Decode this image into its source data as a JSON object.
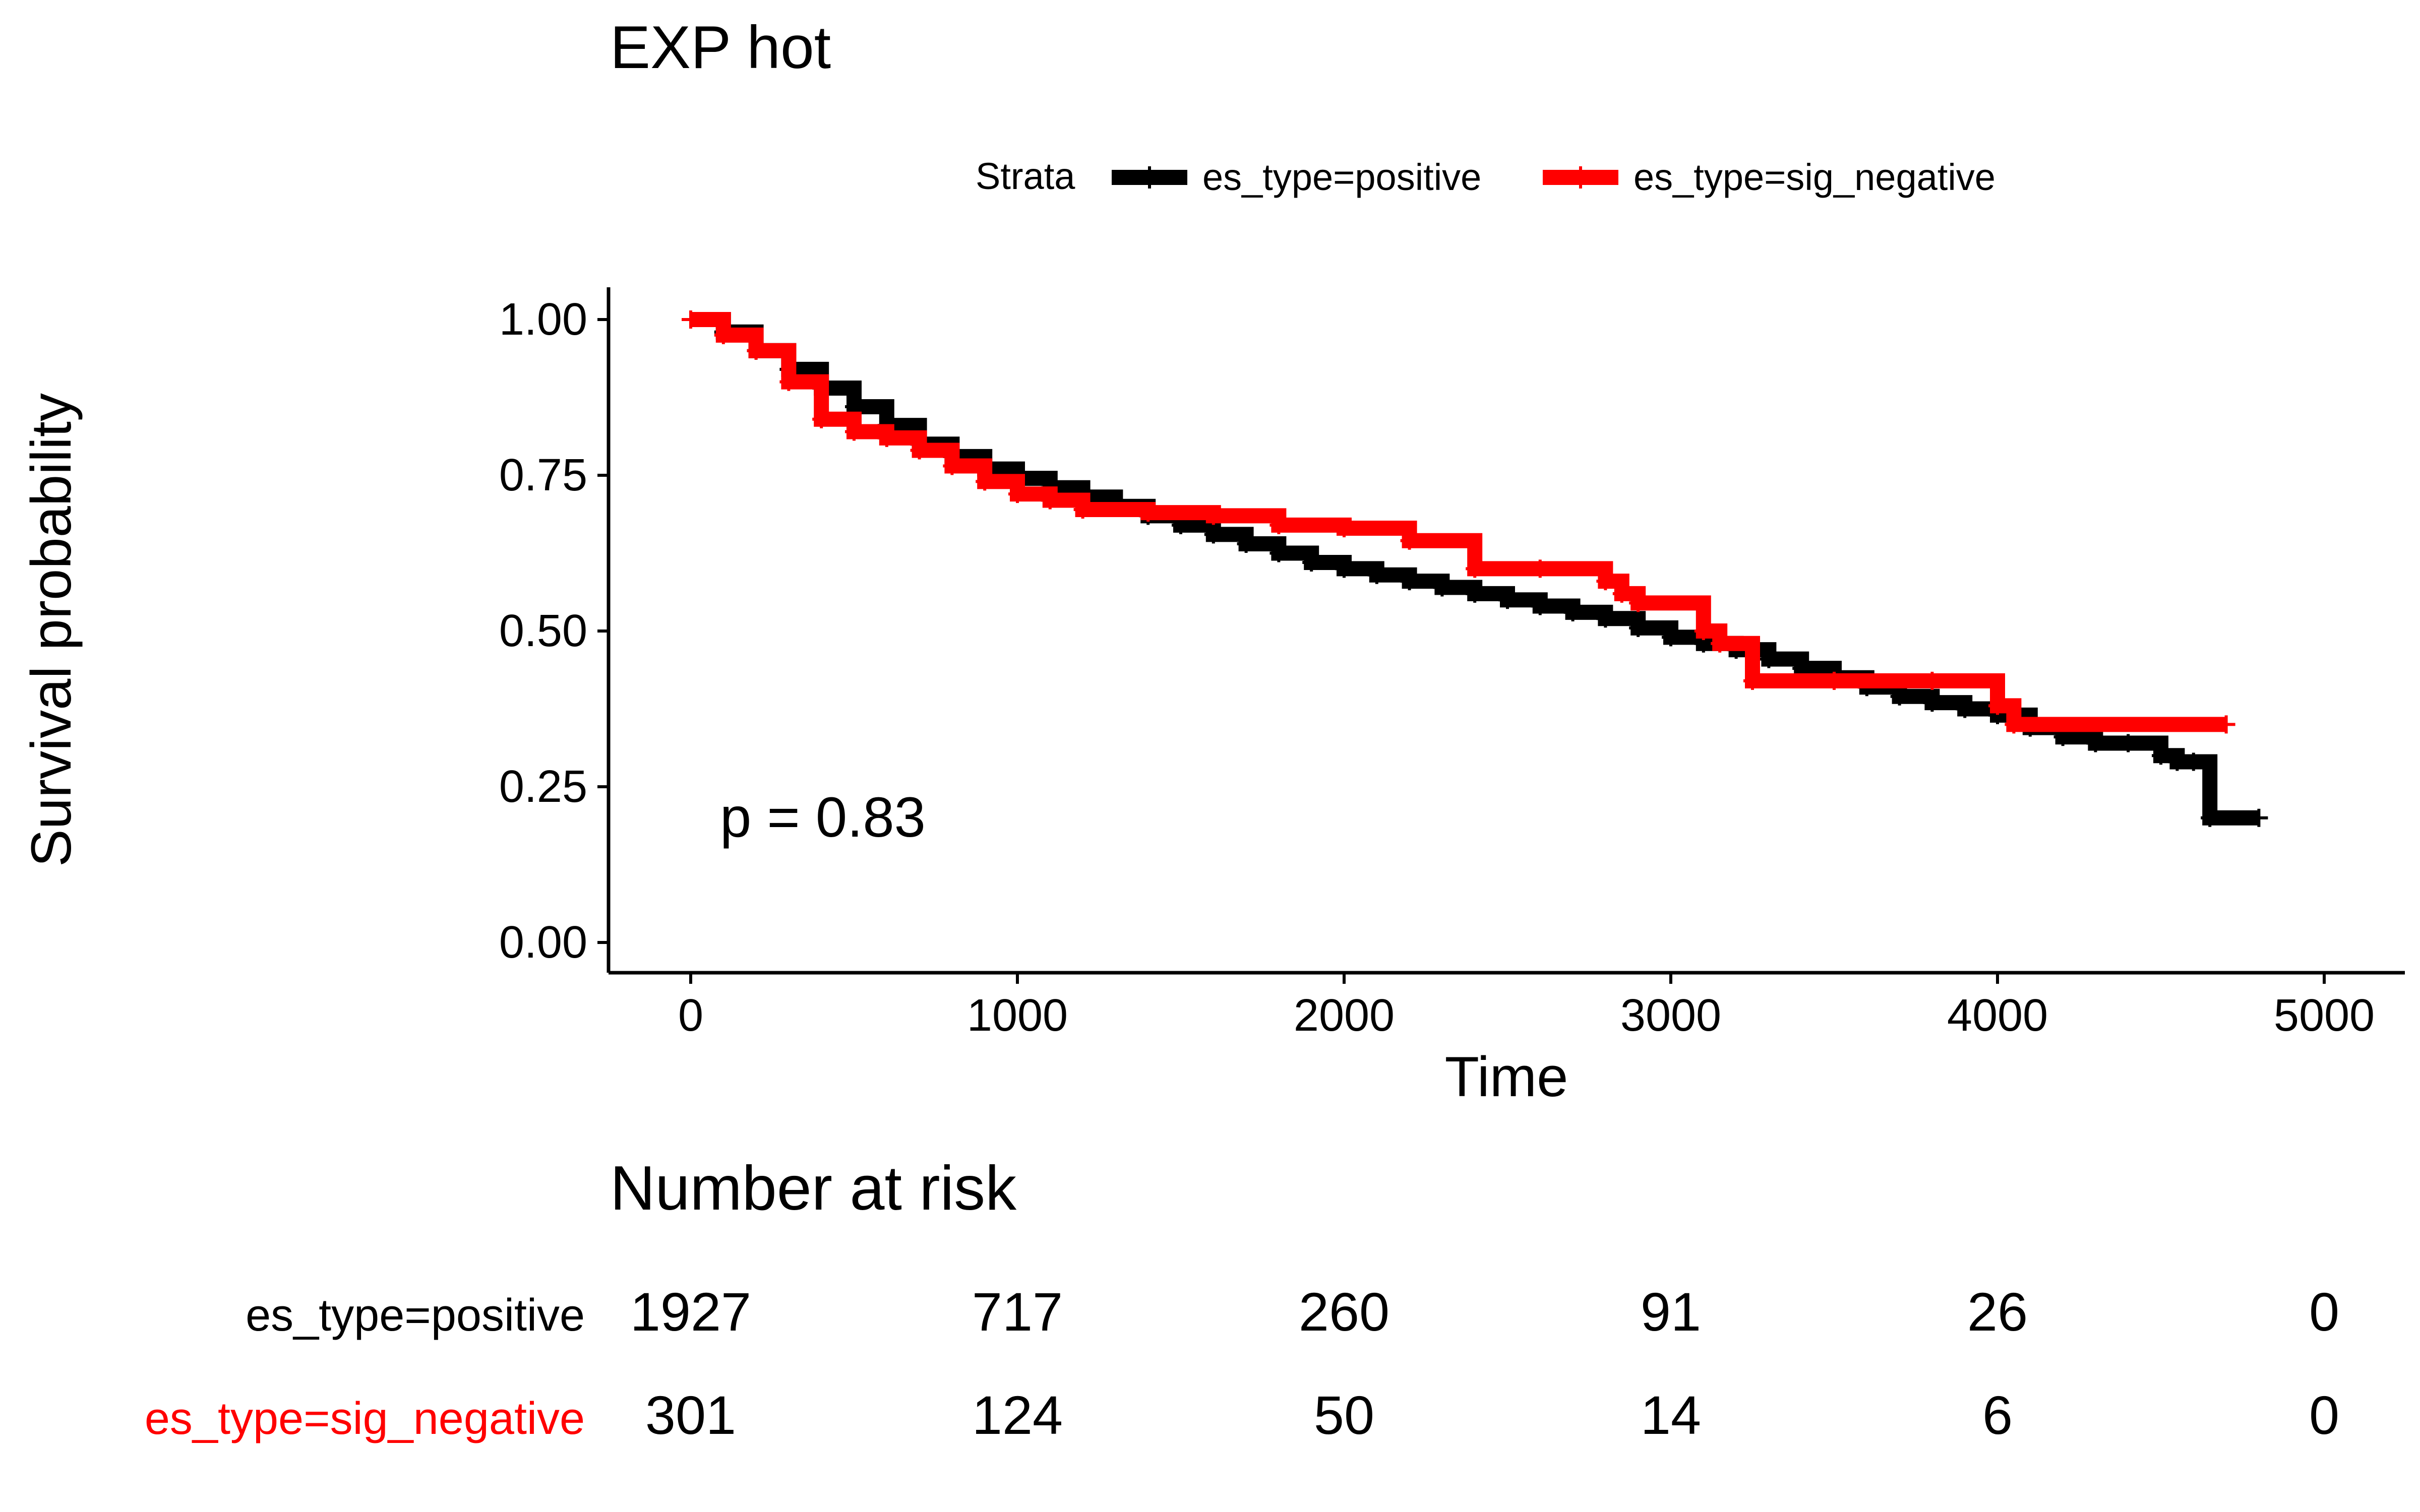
{
  "chart_data": {
    "type": "line",
    "title": "EXP hot",
    "xlabel": "Time",
    "ylabel": "Survival probability",
    "xlim": [
      -240,
      5250
    ],
    "ylim": [
      -0.05,
      1.05
    ],
    "x_ticks": [
      0,
      1000,
      2000,
      3000,
      4000,
      5000
    ],
    "x_tick_labels": [
      "0",
      "1000",
      "2000",
      "3000",
      "4000",
      "5000"
    ],
    "y_ticks": [
      0,
      0.25,
      0.5,
      0.75,
      1.0
    ],
    "y_tick_labels": [
      "0.00",
      "0.25",
      "0.50",
      "0.75",
      "1.00"
    ],
    "grid": false,
    "legend": {
      "title": "Strata",
      "position": "top",
      "items": [
        {
          "label": "es_type=positive",
          "color": "#000000"
        },
        {
          "label": "es_type=sig_negative",
          "color": "#FF0000"
        }
      ]
    },
    "annotation": "p = 0.83",
    "series": [
      {
        "name": "es_type=positive",
        "color": "#000000",
        "x": [
          0,
          100,
          200,
          300,
          400,
          500,
          600,
          700,
          800,
          900,
          1000,
          1100,
          1200,
          1300,
          1400,
          1500,
          1600,
          1700,
          1800,
          1900,
          2000,
          2100,
          2200,
          2300,
          2400,
          2500,
          2600,
          2700,
          2800,
          2900,
          3000,
          3100,
          3200,
          3300,
          3400,
          3500,
          3600,
          3700,
          3800,
          3900,
          4000,
          4100,
          4200,
          4300,
          4400,
          4500,
          4550,
          4600,
          4650,
          4800
        ],
        "y": [
          1.0,
          0.98,
          0.95,
          0.92,
          0.89,
          0.86,
          0.83,
          0.8,
          0.78,
          0.76,
          0.745,
          0.73,
          0.715,
          0.7,
          0.685,
          0.67,
          0.655,
          0.64,
          0.625,
          0.61,
          0.6,
          0.59,
          0.58,
          0.57,
          0.56,
          0.55,
          0.54,
          0.53,
          0.52,
          0.505,
          0.49,
          0.48,
          0.47,
          0.455,
          0.44,
          0.425,
          0.41,
          0.395,
          0.385,
          0.375,
          0.365,
          0.345,
          0.33,
          0.32,
          0.32,
          0.3,
          0.29,
          0.29,
          0.2,
          0.2
        ]
      },
      {
        "name": "es_type=sig_negative",
        "color": "#FF0000",
        "x": [
          0,
          100,
          200,
          300,
          400,
          500,
          600,
          700,
          800,
          900,
          1000,
          1100,
          1200,
          1400,
          1600,
          1800,
          2000,
          2200,
          2400,
          2600,
          2800,
          2850,
          2900,
          3100,
          3150,
          3250,
          3500,
          3800,
          4000,
          4050,
          4700
        ],
        "y": [
          1.0,
          0.975,
          0.95,
          0.9,
          0.84,
          0.82,
          0.81,
          0.79,
          0.765,
          0.74,
          0.72,
          0.71,
          0.695,
          0.69,
          0.685,
          0.67,
          0.665,
          0.645,
          0.6,
          0.6,
          0.58,
          0.56,
          0.545,
          0.5,
          0.48,
          0.42,
          0.42,
          0.42,
          0.38,
          0.35,
          0.35
        ]
      }
    ],
    "risk_table": {
      "title": "Number at risk",
      "times": [
        0,
        1000,
        2000,
        3000,
        4000,
        5000
      ],
      "rows": [
        {
          "label": "es_type=positive",
          "color": "#000000",
          "values": [
            "1927",
            "717",
            "260",
            "91",
            "26",
            "0"
          ]
        },
        {
          "label": "es_type=sig_negative",
          "color": "#FF0000",
          "values": [
            "301",
            "124",
            "50",
            "14",
            "6",
            "0"
          ]
        }
      ]
    }
  }
}
